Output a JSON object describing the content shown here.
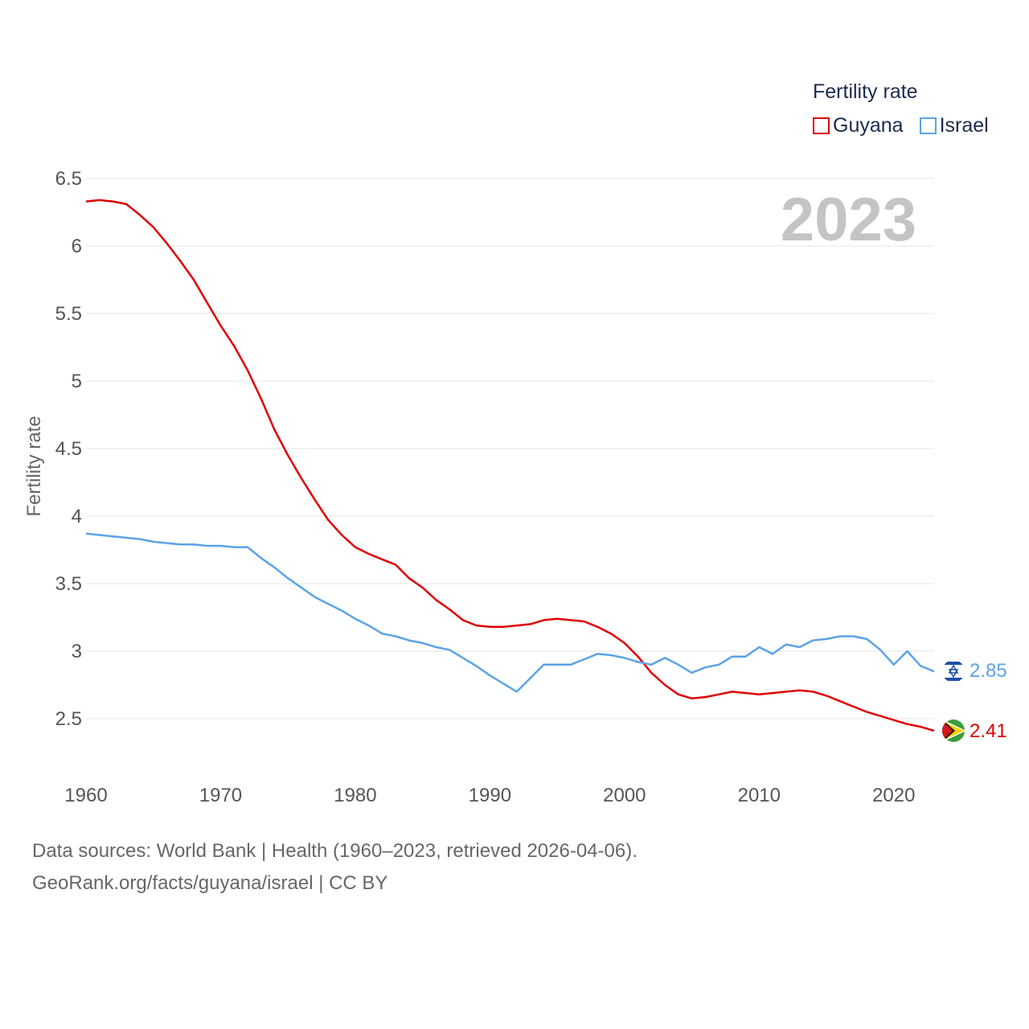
{
  "legend": {
    "title": "Fertility rate",
    "items": [
      {
        "label": "Guyana",
        "color": "#e00000"
      },
      {
        "label": "Israel",
        "color": "#5ba3e6"
      }
    ]
  },
  "footer": {
    "line1": "Data sources: World Bank | Health (1960–2023, retrieved 2026-04-06).",
    "line2": "GeoRank.org/facts/guyana/israel | CC BY"
  },
  "chart_data": {
    "type": "line",
    "title": "Fertility rate",
    "year_label": "2023",
    "xlabel": "",
    "ylabel": "Fertility rate",
    "xlim": [
      1960,
      2023
    ],
    "ylim": [
      2.2,
      6.5
    ],
    "x_ticks": [
      "1960",
      "1970",
      "1980",
      "1990",
      "2000",
      "2010",
      "2020"
    ],
    "y_ticks": [
      "2.5",
      "3",
      "3.5",
      "4",
      "4.5",
      "5",
      "5.5",
      "6",
      "6.5"
    ],
    "grid": true,
    "series": [
      {
        "name": "Guyana",
        "color": "#e00000",
        "end_label": "2.41",
        "x": [
          1960,
          1961,
          1962,
          1963,
          1964,
          1965,
          1966,
          1967,
          1968,
          1969,
          1970,
          1971,
          1972,
          1973,
          1974,
          1975,
          1976,
          1977,
          1978,
          1979,
          1980,
          1981,
          1982,
          1983,
          1984,
          1985,
          1986,
          1987,
          1988,
          1989,
          1990,
          1991,
          1992,
          1993,
          1994,
          1995,
          1996,
          1997,
          1998,
          1999,
          2000,
          2001,
          2002,
          2003,
          2004,
          2005,
          2006,
          2007,
          2008,
          2009,
          2010,
          2011,
          2012,
          2013,
          2014,
          2015,
          2016,
          2017,
          2018,
          2019,
          2020,
          2021,
          2022,
          2023
        ],
        "values": [
          6.33,
          6.34,
          6.33,
          6.31,
          6.23,
          6.14,
          6.02,
          5.89,
          5.75,
          5.58,
          5.41,
          5.26,
          5.08,
          4.87,
          4.64,
          4.45,
          4.28,
          4.12,
          3.97,
          3.86,
          3.77,
          3.72,
          3.68,
          3.64,
          3.54,
          3.47,
          3.38,
          3.31,
          3.23,
          3.19,
          3.18,
          3.18,
          3.19,
          3.2,
          3.23,
          3.24,
          3.23,
          3.22,
          3.18,
          3.13,
          3.06,
          2.96,
          2.84,
          2.75,
          2.68,
          2.65,
          2.66,
          2.68,
          2.7,
          2.69,
          2.68,
          2.69,
          2.7,
          2.71,
          2.7,
          2.67,
          2.63,
          2.59,
          2.55,
          2.52,
          2.49,
          2.46,
          2.44,
          2.41
        ]
      },
      {
        "name": "Israel",
        "color": "#5ba3e6",
        "end_label": "2.85",
        "x": [
          1960,
          1961,
          1962,
          1963,
          1964,
          1965,
          1966,
          1967,
          1968,
          1969,
          1970,
          1971,
          1972,
          1973,
          1974,
          1975,
          1976,
          1977,
          1978,
          1979,
          1980,
          1981,
          1982,
          1983,
          1984,
          1985,
          1986,
          1987,
          1988,
          1989,
          1990,
          1991,
          1992,
          1993,
          1994,
          1995,
          1996,
          1997,
          1998,
          1999,
          2000,
          2001,
          2002,
          2003,
          2004,
          2005,
          2006,
          2007,
          2008,
          2009,
          2010,
          2011,
          2012,
          2013,
          2014,
          2015,
          2016,
          2017,
          2018,
          2019,
          2020,
          2021,
          2022,
          2023
        ],
        "values": [
          3.87,
          3.86,
          3.85,
          3.84,
          3.83,
          3.81,
          3.8,
          3.79,
          3.79,
          3.78,
          3.78,
          3.77,
          3.77,
          3.69,
          3.62,
          3.54,
          3.47,
          3.4,
          3.35,
          3.3,
          3.24,
          3.19,
          3.13,
          3.11,
          3.08,
          3.06,
          3.03,
          3.01,
          2.95,
          2.89,
          2.82,
          2.76,
          2.7,
          2.8,
          2.9,
          2.9,
          2.9,
          2.94,
          2.98,
          2.97,
          2.95,
          2.92,
          2.9,
          2.95,
          2.9,
          2.84,
          2.88,
          2.9,
          2.96,
          2.96,
          3.03,
          2.98,
          3.05,
          3.03,
          3.08,
          3.09,
          3.11,
          3.11,
          3.09,
          3.01,
          2.9,
          3.0,
          2.89,
          2.85
        ]
      }
    ]
  }
}
